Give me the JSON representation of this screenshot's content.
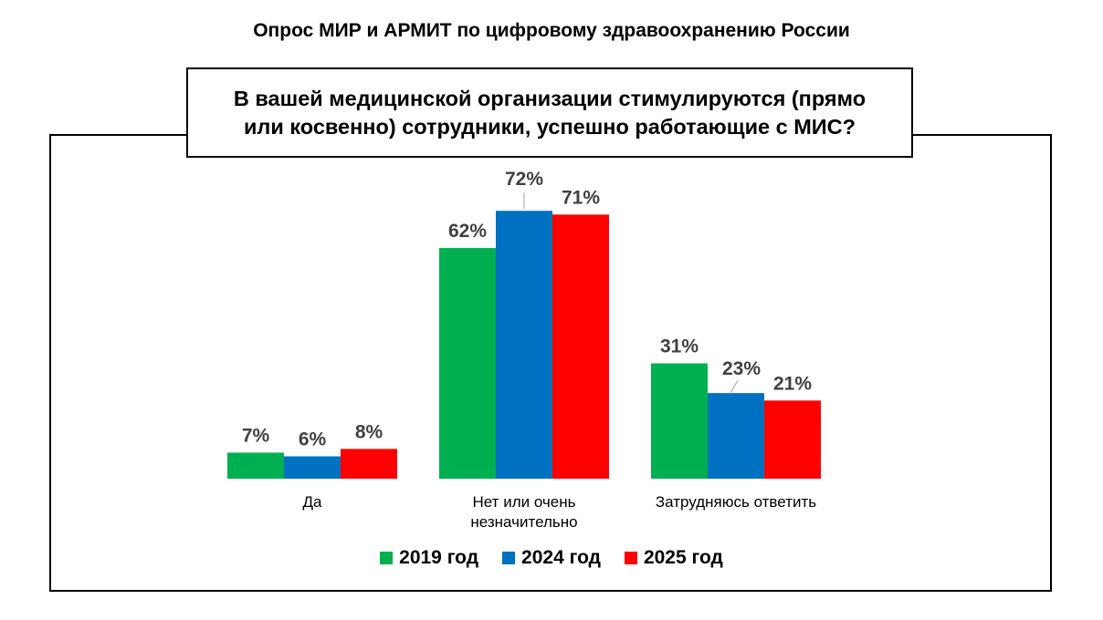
{
  "page": {
    "title": "Опрос  МИР и АРМИТ по цифровому здравоохранению России"
  },
  "chart_data": {
    "type": "bar",
    "title": "В вашей медицинской организации стимулируются (прямо или косвенно) сотрудники, успешно работающие с МИС?",
    "categories": [
      "Да",
      "Нет или очень незначительно",
      "Затрудняюсь ответить"
    ],
    "category_lines": [
      [
        "Да"
      ],
      [
        "Нет или очень",
        "незначительно"
      ],
      [
        "Затрудняюсь ответить"
      ]
    ],
    "series": [
      {
        "name": "2019 год",
        "color": "#00b050",
        "values": [
          7,
          62,
          31
        ],
        "labels": [
          "7%",
          "62%",
          "31%"
        ]
      },
      {
        "name": "2024 год",
        "color": "#0070c0",
        "values": [
          6,
          72,
          23
        ],
        "labels": [
          "6%",
          "72%",
          "23%"
        ]
      },
      {
        "name": "2025 год",
        "color": "#ff0000",
        "values": [
          8,
          71,
          21
        ],
        "labels": [
          "8%",
          "71%",
          "21%"
        ]
      }
    ],
    "ylim": [
      0,
      80
    ],
    "grid": false,
    "legend": "bottom",
    "xlabel": "",
    "ylabel": ""
  }
}
